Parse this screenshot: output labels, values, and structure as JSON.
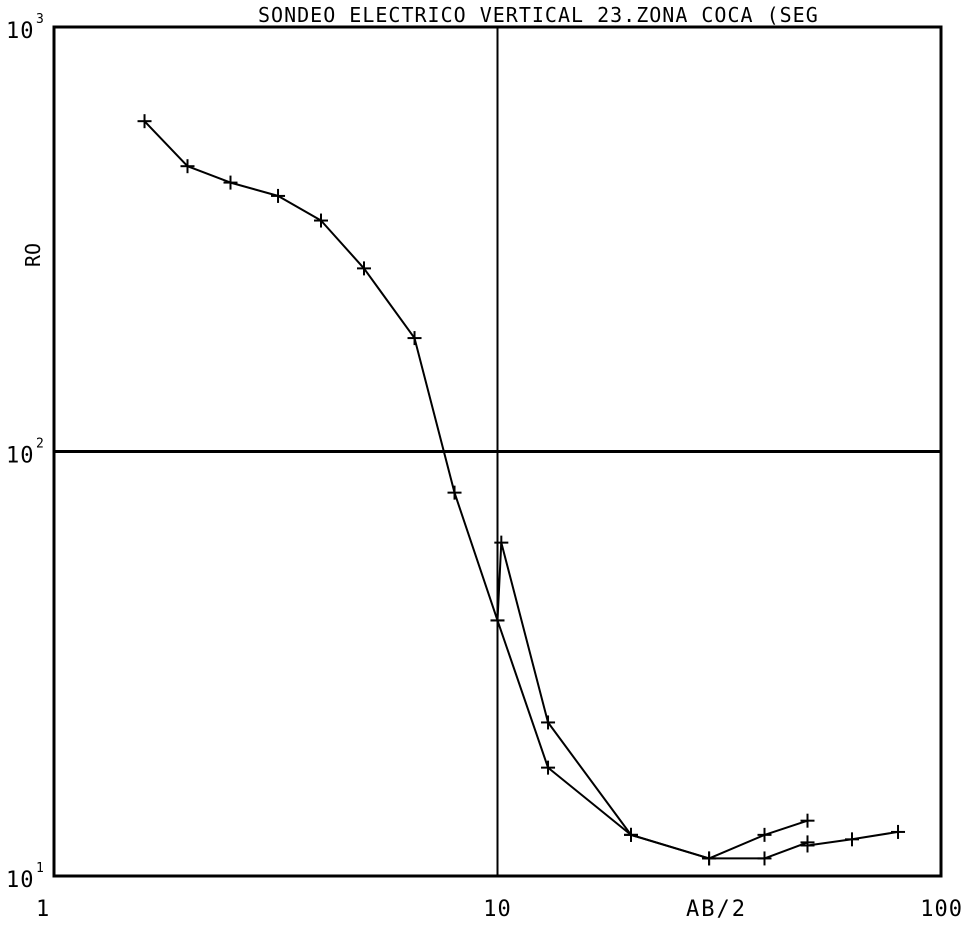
{
  "chart_data": {
    "type": "line",
    "title": "SONDEO ELECTRICO VERTICAL 23.ZONA COCA (SEG",
    "xlabel": "AB/2",
    "ylabel": "RO",
    "x_scale": "log",
    "y_scale": "log",
    "xlim": [
      1,
      100
    ],
    "ylim": [
      10,
      1000
    ],
    "x_tick_labels": [
      {
        "value": 1,
        "label": "1"
      },
      {
        "value": 10,
        "label": "10"
      },
      {
        "value": 100,
        "label": "100"
      }
    ],
    "y_tick_labels": [
      {
        "value": 10,
        "base": "10",
        "exp": "1"
      },
      {
        "value": 100,
        "base": "10",
        "exp": "2"
      },
      {
        "value": 1000,
        "base": "10",
        "exp": "3"
      }
    ],
    "grid": "single lines at x=10 and y=100",
    "series": [
      {
        "x": [
          1.6,
          2.0,
          2.5,
          3.2,
          4.0,
          5.0,
          6.5,
          8.0,
          10.0,
          13.0,
          20.0,
          30.0,
          40.0,
          50.0
        ],
        "y": [
          600,
          470,
          430,
          400,
          350,
          270,
          185,
          80,
          40,
          18,
          12.5,
          11,
          11,
          12
        ]
      },
      {
        "x": [
          10.0,
          10.2,
          13.0,
          20.0,
          30.0,
          40.0,
          50.0
        ],
        "y": [
          40,
          61,
          23,
          12.5,
          11,
          12.5,
          13.5
        ]
      },
      {
        "x": [
          50.0,
          63.0,
          80.0
        ],
        "y": [
          11.8,
          12.2,
          12.7
        ]
      }
    ]
  }
}
